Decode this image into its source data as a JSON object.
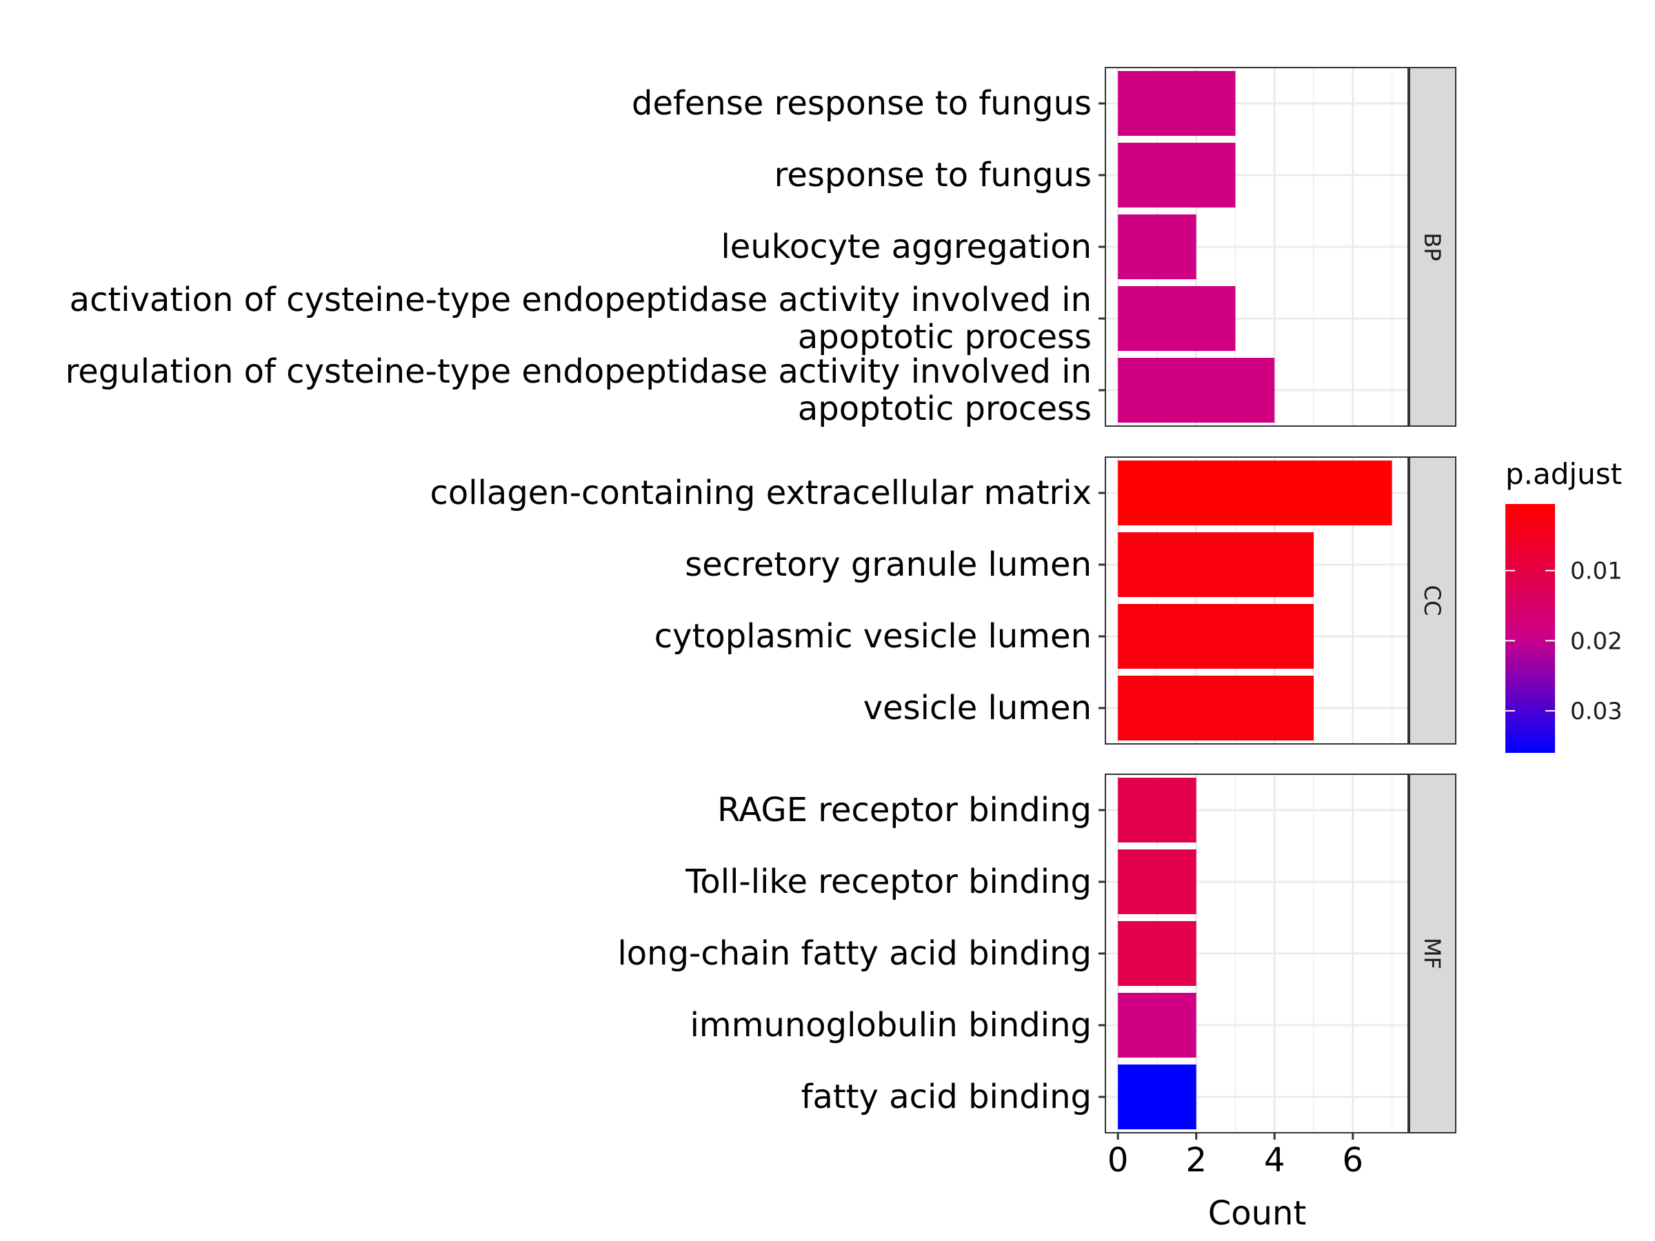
{
  "chart_data": {
    "type": "bar",
    "orientation": "horizontal",
    "xlabel": "Count",
    "x_ticks": [
      0,
      2,
      4,
      6
    ],
    "xlim": [
      -0.32,
      7.43
    ],
    "grid": true,
    "facets": [
      {
        "label": "BP",
        "categories": [
          "defense response to fungus",
          "response to fungus",
          "leukocyte aggregation",
          [
            "activation of cysteine-type endopeptidase activity involved in",
            "apoptotic process"
          ],
          [
            "regulation of cysteine-type endopeptidase activity involved in",
            "apoptotic process"
          ]
        ],
        "values": [
          3,
          3,
          2,
          3,
          4
        ],
        "p_adjust": [
          0.0185,
          0.0185,
          0.0185,
          0.0185,
          0.0185
        ]
      },
      {
        "label": "CC",
        "categories": [
          "collagen-containing extracellular matrix",
          "secretory granule lumen",
          "cytoplasmic vesicle lumen",
          "vesicle lumen"
        ],
        "values": [
          7,
          5,
          5,
          5
        ],
        "p_adjust": [
          0.0005,
          0.0025,
          0.0025,
          0.0025
        ]
      },
      {
        "label": "MF",
        "categories": [
          "RAGE receptor binding",
          "Toll-like receptor binding",
          "long-chain fatty acid binding",
          "immunoglobulin binding",
          "fatty acid binding"
        ],
        "values": [
          2,
          2,
          2,
          2,
          2
        ],
        "p_adjust": [
          0.011,
          0.011,
          0.011,
          0.0185,
          0.036
        ]
      }
    ],
    "legend": {
      "title": "p.adjust",
      "placement": "right",
      "ticks": [
        0.01,
        0.02,
        0.03
      ],
      "range": [
        0.0005,
        0.036
      ],
      "color_low_p": "#ff0000",
      "color_mid_p": "#cc0088",
      "color_high_p": "#0000ff"
    }
  }
}
